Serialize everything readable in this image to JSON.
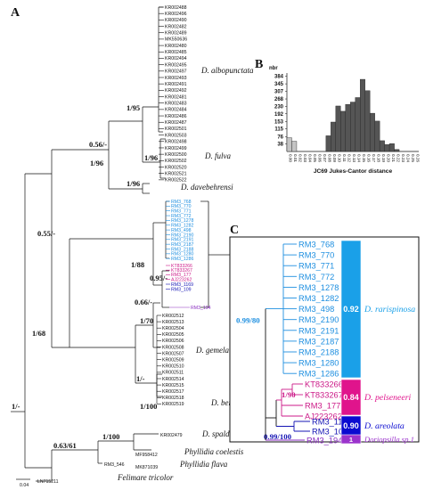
{
  "panels": {
    "a": "A",
    "b": "B",
    "c": "C"
  },
  "tree_a": {
    "leaves_top": [
      "KR002488",
      "KR002496",
      "KR002490",
      "KR002482",
      "KR002489",
      "MK550636",
      "KR002480",
      "KR002485",
      "KR002494",
      "KR002495",
      "KR002497",
      "KR002493",
      "KR002491",
      "KR002492",
      "KR002481",
      "KR002483",
      "KR002484",
      "KR002486",
      "KR002487",
      "KR002501",
      "KR002503",
      "KR002498",
      "KR002499",
      "KR002500",
      "KR002502",
      "KR002520",
      "KR002521",
      "KR002522"
    ],
    "leaves_blue": [
      "RM3_768",
      "RM3_770",
      "RM3_771",
      "RM3_772",
      "RM3_1278",
      "RM3_1282",
      "RM3_498",
      "RM3_2190",
      "RM3_2191",
      "RM3_2187",
      "RM3_2188",
      "RM3_1280",
      "RM3_1286"
    ],
    "leaves_pink": [
      "KT833266",
      "KT833267",
      "RM3_177",
      "AJ223262"
    ],
    "leaves_navy": [
      "RM3_1169",
      "RM3_109"
    ],
    "leaves_purple": [
      "RM3_194"
    ],
    "leaves_bottom": [
      "KR002512",
      "KR002513",
      "KR002504",
      "KR002505",
      "KR002506",
      "KR002508",
      "KR002507",
      "KR002509",
      "KR002510",
      "KR002511",
      "KR002514",
      "KR002515",
      "KR002517",
      "KR002518",
      "KR002519",
      "KR002479",
      "MF958412",
      "MK871039",
      "RM3_546",
      "LN715211"
    ],
    "species": [
      "D. albopunctata",
      "D. fulva",
      "D. davebehrensi",
      "D. gemela",
      "D. bertschi",
      "D. spaldingi",
      "Phyllidia coelestis",
      "Phyllidia flava",
      "Felimare tricolor"
    ],
    "support": [
      "1/95",
      "0.56/-",
      "1/96",
      "1/96",
      "1/96",
      "0.55/-",
      "1/88",
      "0.95/-",
      "0.66/-",
      "1/68",
      "1/70",
      "1/-",
      "1/100",
      "0.63/61",
      "1/100",
      "1/-"
    ],
    "scale": "0.04"
  },
  "histogram": {
    "ylabel_top": "nbr",
    "xlabel": "JC69 Jukes-Cantor distance",
    "yticks": [
      "384",
      "345",
      "307",
      "268",
      "230",
      "192",
      "153",
      "115",
      "76",
      "38"
    ],
    "xticks": [
      "0.00",
      "0.01",
      "0.02",
      "0.03",
      "0.04",
      "0.05",
      "0.06",
      "0.07",
      "0.08",
      "0.09",
      "0.10",
      "0.11",
      "0.12",
      "0.13",
      "0.14",
      "0.15",
      "0.16",
      "0.17",
      "0.18",
      "0.19",
      "0.20",
      "0.21",
      "0.22",
      "0.23",
      "0.24",
      "0.25",
      "0.26"
    ],
    "colors": {
      "light": "#c4c4c4",
      "dark": "#555555"
    }
  },
  "chart_data": {
    "type": "bar",
    "title": "",
    "xlabel": "JC69 Jukes-Cantor distance",
    "ylabel": "nbr",
    "ylim": [
      0,
      400
    ],
    "categories": [
      "0.00",
      "0.01",
      "0.02",
      "0.03",
      "0.04",
      "0.05",
      "0.06",
      "0.07",
      "0.08",
      "0.09",
      "0.10",
      "0.11",
      "0.12",
      "0.13",
      "0.14",
      "0.15",
      "0.16",
      "0.17",
      "0.18",
      "0.19",
      "0.20",
      "0.21",
      "0.22",
      "0.23",
      "0.24",
      "0.25",
      "0.26"
    ],
    "values": [
      70,
      52,
      0,
      0,
      0,
      0,
      0,
      0,
      80,
      150,
      232,
      205,
      240,
      252,
      275,
      368,
      310,
      195,
      155,
      55,
      35,
      40,
      10,
      0,
      0,
      0,
      0
    ],
    "bar_colors": [
      "light",
      "light",
      "none",
      "none",
      "none",
      "none",
      "none",
      "none",
      "dark",
      "dark",
      "dark",
      "dark",
      "dark",
      "dark",
      "dark",
      "dark",
      "dark",
      "dark",
      "dark",
      "dark",
      "dark",
      "dark",
      "dark",
      "none",
      "none",
      "none",
      "none"
    ]
  },
  "panel_c": {
    "leaves_blue": [
      "RM3_768",
      "RM3_770",
      "RM3_771",
      "RM3_772",
      "RM3_1278",
      "RM3_1282",
      "RM3_498",
      "RM3_2190",
      "RM3_2191",
      "RM3_2187",
      "RM3_2188",
      "RM3_1280",
      "RM3_1286"
    ],
    "leaves_pink": [
      "KT833266",
      "KT833267",
      "RM3_177",
      "AJ223262"
    ],
    "leaves_navy": [
      "RM3_1169",
      "RM3_109"
    ],
    "leaves_purple": [
      "RM3_194"
    ],
    "support": {
      "blue": "0.99/80",
      "pink": "1/90",
      "navy": "0.99/100"
    },
    "boxes": [
      {
        "value": "0.92",
        "species": "D. rarispinosa",
        "color": "#1aa0e8"
      },
      {
        "value": "0.84",
        "species": "D. pelseneeri",
        "color": "#e0148c"
      },
      {
        "value": "0.90",
        "species": "D. areolata",
        "color": "#0a0ad0"
      },
      {
        "value": "1",
        "species": "Doriopsilla sp.1",
        "color": "#9b33cc"
      }
    ],
    "colors": {
      "blue": "#1e8fe0",
      "pink": "#cc1a88",
      "navy": "#1414b4",
      "purple": "#8a2ec0"
    }
  }
}
